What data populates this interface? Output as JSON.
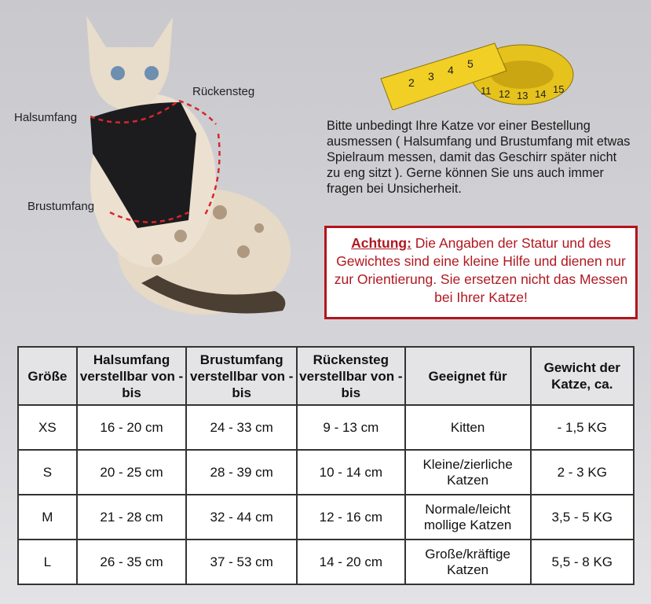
{
  "labels": {
    "neck": "Halsumfang",
    "back": "Rückensteg",
    "chest": "Brustumfang"
  },
  "tape_numbers": [
    "2",
    "3",
    "4",
    "5",
    "11",
    "12",
    "13",
    "14",
    "15"
  ],
  "info_text": "Bitte unbedingt Ihre Katze vor einer Bestellung ausmessen ( Halsumfang und Brustumfang mit etwas Spielraum messen, damit das Geschirr später nicht zu eng sitzt ). Gerne können Sie uns auch immer fragen bei Unsicherheit.",
  "warning": {
    "title": "Achtung:",
    "text": " Die Angaben der Statur und des Gewichtes sind eine kleine Hilfe und dienen nur zur Orientierung. Sie ersetzen nicht das Messen bei Ihrer Katze!",
    "color": "#b3141d"
  },
  "table": {
    "headers": [
      "Größe",
      "Halsumfang verstellbar von - bis",
      "Brustumfang verstellbar von - bis",
      "Rückensteg verstellbar von - bis",
      "Geeignet für",
      "Gewicht der Katze, ca."
    ],
    "rows": [
      [
        "XS",
        "16 - 20 cm",
        "24 - 33 cm",
        "9 - 13 cm",
        "Kitten",
        "- 1,5 KG"
      ],
      [
        "S",
        "20 - 25 cm",
        "28 - 39 cm",
        "10 - 14 cm",
        "Kleine/zierliche Katzen",
        "2 - 3 KG"
      ],
      [
        "M",
        "21 - 28 cm",
        "32 - 44 cm",
        "12 - 16 cm",
        "Normale/leicht mollige Katzen",
        "3,5 - 5 KG"
      ],
      [
        "L",
        "26 - 35 cm",
        "37 - 53 cm",
        "14 - 20 cm",
        "Große/kräftige Katzen",
        "5,5 - 8 KG"
      ]
    ]
  }
}
